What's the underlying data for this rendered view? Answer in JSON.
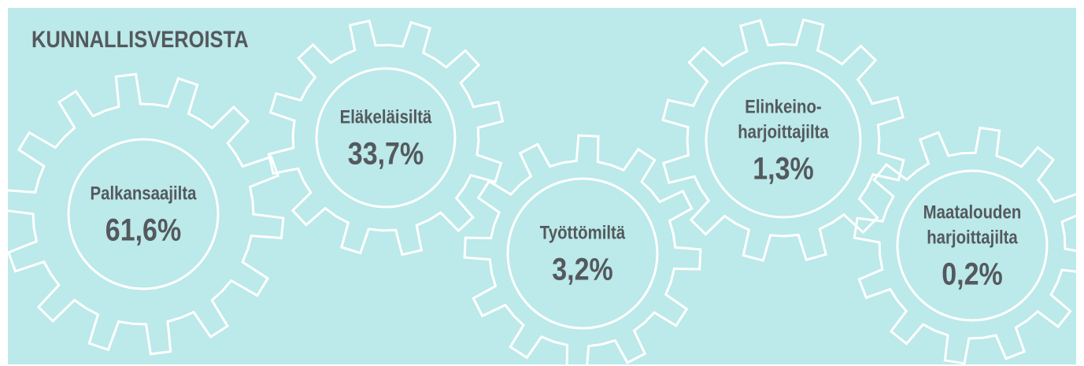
{
  "header": {
    "title": "KUNNALLISVEROISTA"
  },
  "items": [
    {
      "label": [
        "Palkansaajilta"
      ],
      "value": "61,6%"
    },
    {
      "label": [
        "Eläkeläisiltä"
      ],
      "value": "33,7%"
    },
    {
      "label": [
        "Työttömiltä"
      ],
      "value": "3,2%"
    },
    {
      "label": [
        "Elinkeino-",
        "harjoittajilta"
      ],
      "value": "1,3%"
    },
    {
      "label": [
        "Maatalouden",
        "harjoittajilta"
      ],
      "value": "0,2%"
    }
  ]
}
